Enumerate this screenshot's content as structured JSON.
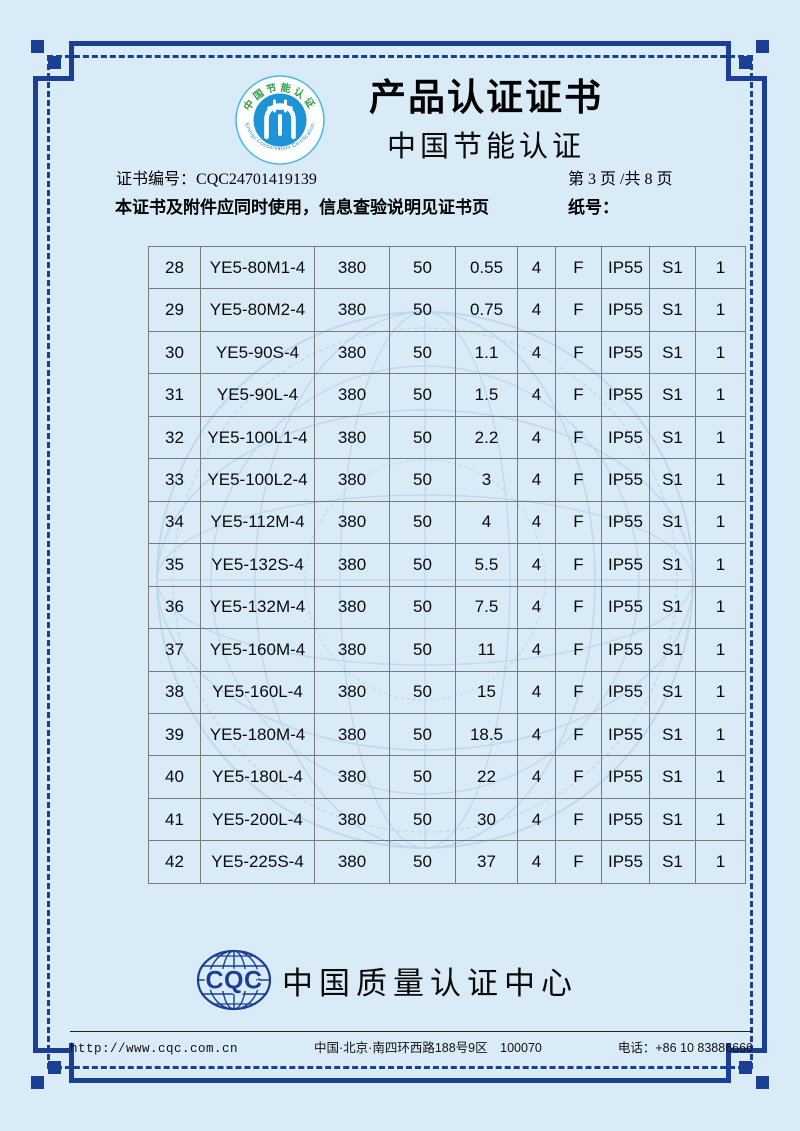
{
  "colors": {
    "page_background": "#d9ebf7",
    "frame_navy": "#1b3f93",
    "table_border_gray": "#7a7a7a",
    "logo_inner_blue": "#1e93d6",
    "logo_arc_green": "#2f9e44",
    "watermark_blue": "#b7d4e9"
  },
  "header": {
    "title": "产品认证证书",
    "subtitle": "中国节能认证",
    "logo_top_arc": "中国节能认证",
    "logo_bottom_arc": "Energy Conservation Certification"
  },
  "meta": {
    "cert_label": "证书编号：",
    "cert_no": "CQC24701419139",
    "page_info": "第 3 页 /共 8 页",
    "notice": "本证书及附件应同时使用，信息查验说明见证书页",
    "paper_label": "纸号："
  },
  "table": {
    "rows": [
      [
        "28",
        "YE5-80M1-4",
        "380",
        "50",
        "0.55",
        "4",
        "F",
        "IP55",
        "S1",
        "1"
      ],
      [
        "29",
        "YE5-80M2-4",
        "380",
        "50",
        "0.75",
        "4",
        "F",
        "IP55",
        "S1",
        "1"
      ],
      [
        "30",
        "YE5-90S-4",
        "380",
        "50",
        "1.1",
        "4",
        "F",
        "IP55",
        "S1",
        "1"
      ],
      [
        "31",
        "YE5-90L-4",
        "380",
        "50",
        "1.5",
        "4",
        "F",
        "IP55",
        "S1",
        "1"
      ],
      [
        "32",
        "YE5-100L1-4",
        "380",
        "50",
        "2.2",
        "4",
        "F",
        "IP55",
        "S1",
        "1"
      ],
      [
        "33",
        "YE5-100L2-4",
        "380",
        "50",
        "3",
        "4",
        "F",
        "IP55",
        "S1",
        "1"
      ],
      [
        "34",
        "YE5-112M-4",
        "380",
        "50",
        "4",
        "4",
        "F",
        "IP55",
        "S1",
        "1"
      ],
      [
        "35",
        "YE5-132S-4",
        "380",
        "50",
        "5.5",
        "4",
        "F",
        "IP55",
        "S1",
        "1"
      ],
      [
        "36",
        "YE5-132M-4",
        "380",
        "50",
        "7.5",
        "4",
        "F",
        "IP55",
        "S1",
        "1"
      ],
      [
        "37",
        "YE5-160M-4",
        "380",
        "50",
        "11",
        "4",
        "F",
        "IP55",
        "S1",
        "1"
      ],
      [
        "38",
        "YE5-160L-4",
        "380",
        "50",
        "15",
        "4",
        "F",
        "IP55",
        "S1",
        "1"
      ],
      [
        "39",
        "YE5-180M-4",
        "380",
        "50",
        "18.5",
        "4",
        "F",
        "IP55",
        "S1",
        "1"
      ],
      [
        "40",
        "YE5-180L-4",
        "380",
        "50",
        "22",
        "4",
        "F",
        "IP55",
        "S1",
        "1"
      ],
      [
        "41",
        "YE5-200L-4",
        "380",
        "50",
        "30",
        "4",
        "F",
        "IP55",
        "S1",
        "1"
      ],
      [
        "42",
        "YE5-225S-4",
        "380",
        "50",
        "37",
        "4",
        "F",
        "IP55",
        "S1",
        "1"
      ]
    ]
  },
  "footer": {
    "logo_text": "CQC",
    "org_name": "中国质量认证中心",
    "url": "http://www.cqc.com.cn",
    "address": "中国·北京·南四环西路188号9区　100070",
    "phone": "电话：+86 10 83886666"
  }
}
